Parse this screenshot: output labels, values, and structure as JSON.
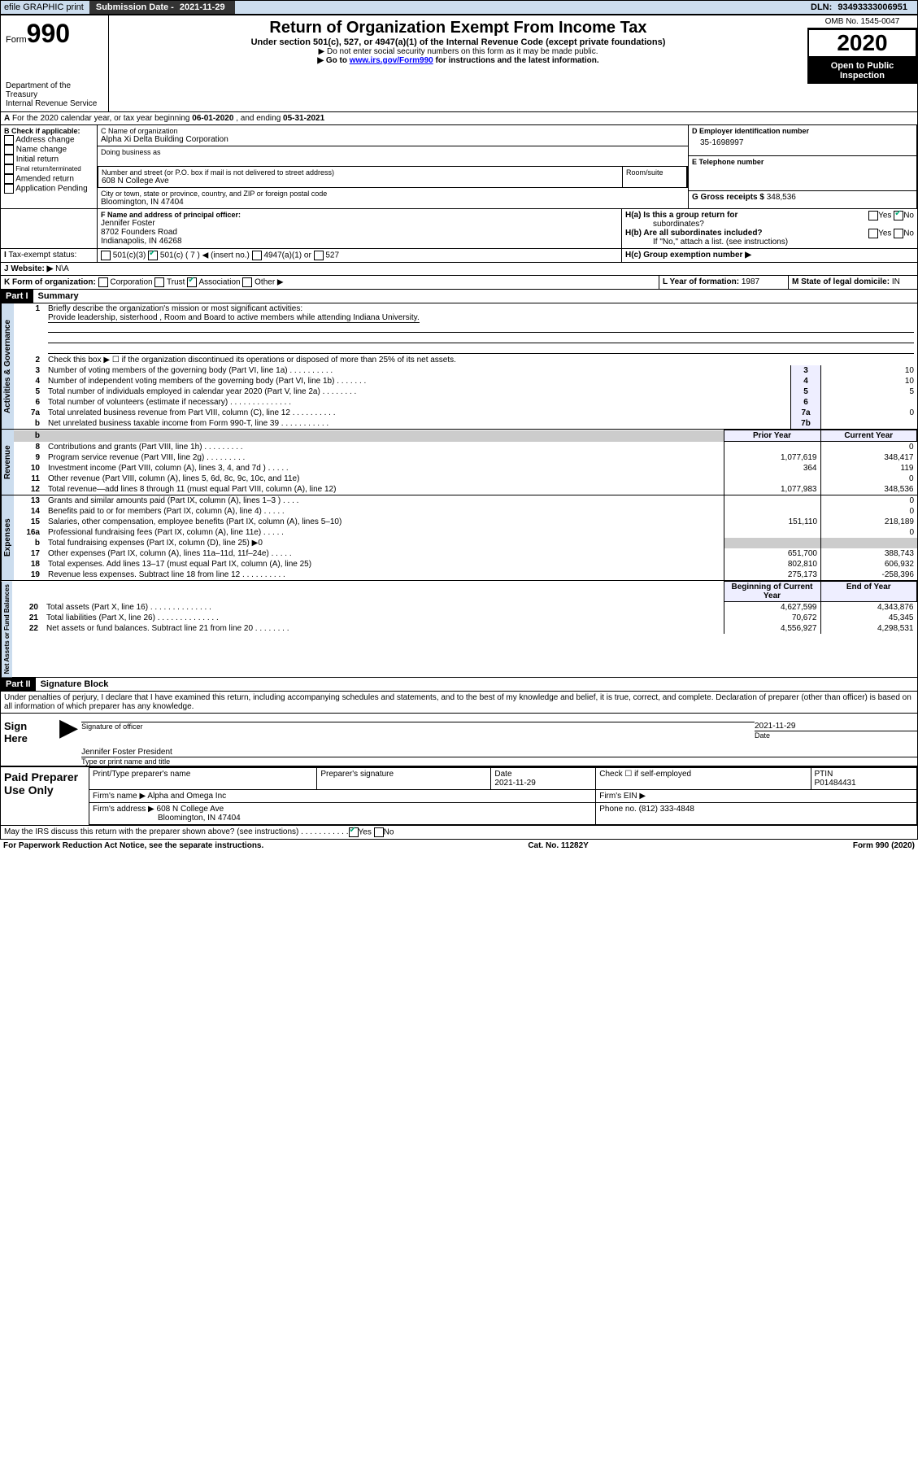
{
  "topbar": {
    "efile": "efile GRAPHIC print",
    "sub_label": "Submission Date - ",
    "sub_date": "2021-11-29",
    "dln_label": "DLN: ",
    "dln": "93493333006951"
  },
  "header": {
    "form_word": "Form",
    "form_num": "990",
    "title": "Return of Organization Exempt From Income Tax",
    "sub1": "Under section 501(c), 527, or 4947(a)(1) of the Internal Revenue Code (except private foundations)",
    "sub2": "▶ Do not enter social security numbers on this form as it may be made public.",
    "sub3a": "▶ Go to ",
    "sub3_link": "www.irs.gov/Form990",
    "sub3b": " for instructions and the latest information.",
    "omb": "OMB No. 1545-0047",
    "year": "2020",
    "inspect1": "Open to Public",
    "inspect2": "Inspection",
    "dept1": "Department of the Treasury",
    "dept2": "Internal Revenue Service"
  },
  "A": {
    "text": "For the 2020 calendar year, or tax year beginning ",
    "begin": "06-01-2020",
    ", and ending ": "",
    ", and ending": "   , and ending ",
    "end": "05-31-2021"
  },
  "B": {
    "label": "B Check if applicable:",
    "opts": [
      "Address change",
      "Name change",
      "Initial return",
      "Final return/terminated",
      "Amended return",
      "Application Pending"
    ]
  },
  "C": {
    "name_label": "C Name of organization",
    "name": "Alpha Xi Delta Building Corporation",
    "dba_label": "Doing business as",
    "addr_label": "Number and street (or P.O. box if mail is not delivered to street address)",
    "room_label": "Room/suite",
    "addr": "608 N College Ave",
    "city_label": "City or town, state or province, country, and ZIP or foreign postal code",
    "city": "Bloomington, IN  47404"
  },
  "D": {
    "label": "D Employer identification number",
    "val": "35-1698997"
  },
  "E": {
    "label": "E Telephone number"
  },
  "G": {
    "label": "G Gross receipts $ ",
    "val": "348,536"
  },
  "F": {
    "label": "F  Name and address of principal officer:",
    "name": "Jennifer Foster",
    "addr1": "8702 Founders Road",
    "addr2": "Indianapolis, IN  46268"
  },
  "H": {
    "a": "H(a)  Is this a group return for",
    "a2": "subordinates?",
    "b": "H(b)  Are all subordinates included?",
    "note": "If \"No,\" attach a list. (see instructions)",
    "c": "H(c)  Group exemption number ▶",
    "yes": "Yes",
    "no": "No"
  },
  "I": {
    "label": "Tax-exempt status:",
    "o1": "501(c)(3)",
    "o2": "501(c) ( 7 ) ◀ (insert no.)",
    "o3": "4947(a)(1) or",
    "o4": "527"
  },
  "J": {
    "label": "Website: ▶",
    "val": "N\\A"
  },
  "K": {
    "label": "K Form of organization:",
    "opts": [
      "Corporation",
      "Trust",
      "Association",
      "Other ▶"
    ]
  },
  "L": {
    "label": "L Year of formation: ",
    "val": "1987"
  },
  "M": {
    "label": "M State of legal domicile: ",
    "val": "IN"
  },
  "part1": {
    "hdr": "Part I",
    "title": "Summary"
  },
  "gov": {
    "l1": "Briefly describe the organization's mission or most significant activities:",
    "l1v": "Provide leadership, sisterhood , Room and Board to active members while attending Indiana University.",
    "l2": "Check this box ▶ ☐  if the organization discontinued its operations or disposed of more than 25% of its net assets.",
    "rows": [
      [
        "3",
        "Number of voting members of the governing body (Part VI, line 1a)   .    .    .    .    .    .    .    .    .    .",
        "3",
        "10"
      ],
      [
        "4",
        "Number of independent voting members of the governing body (Part VI, line 1b)   .    .    .    .    .    .    .",
        "4",
        "10"
      ],
      [
        "5",
        "Total number of individuals employed in calendar year 2020 (Part V, line 2a)   .    .    .    .    .    .    .    .",
        "5",
        "5"
      ],
      [
        "6",
        "Total number of volunteers (estimate if necessary)   .    .    .    .    .    .    .    .    .    .    .    .    .    .",
        "6",
        ""
      ],
      [
        "7a",
        "Total unrelated business revenue from Part VIII, column (C), line 12   .    .    .    .    .    .    .    .    .    .",
        "7a",
        "0"
      ],
      [
        "b",
        "Net unrelated business taxable income from Form 990-T, line 39   .    .    .    .    .    .    .    .    .    .    .",
        "7b",
        ""
      ]
    ]
  },
  "cols": {
    "prior": "Prior Year",
    "current": "Current Year",
    "boy": "Beginning of Current Year",
    "eoy": "End of Year"
  },
  "rev": [
    [
      "8",
      "Contributions and grants (Part VIII, line 1h)   .    .    .    .    .    .    .    .    .",
      "",
      "0"
    ],
    [
      "9",
      "Program service revenue (Part VIII, line 2g)   .    .    .    .    .    .    .    .    .",
      "1,077,619",
      "348,417"
    ],
    [
      "10",
      "Investment income (Part VIII, column (A), lines 3, 4, and 7d )   .    .    .    .    .",
      "364",
      "119"
    ],
    [
      "11",
      "Other revenue (Part VIII, column (A), lines 5, 6d, 8c, 9c, 10c, and 11e)",
      "",
      "0"
    ],
    [
      "12",
      "Total revenue—add lines 8 through 11 (must equal Part VIII, column (A), line 12)",
      "1,077,983",
      "348,536"
    ]
  ],
  "exp": [
    [
      "13",
      "Grants and similar amounts paid (Part IX, column (A), lines 1–3 )   .    .    .    .",
      "",
      "0"
    ],
    [
      "14",
      "Benefits paid to or for members (Part IX, column (A), line 4)   .    .    .    .    .",
      "",
      "0"
    ],
    [
      "15",
      "Salaries, other compensation, employee benefits (Part IX, column (A), lines 5–10)",
      "151,110",
      "218,189"
    ],
    [
      "16a",
      "Professional fundraising fees (Part IX, column (A), line 11e)   .    .    .    .    .",
      "",
      "0"
    ],
    [
      "b",
      "Total fundraising expenses (Part IX, column (D), line 25) ▶0",
      "shade",
      "shade"
    ],
    [
      "17",
      "Other expenses (Part IX, column (A), lines 11a–11d, 11f–24e)   .    .    .    .    .",
      "651,700",
      "388,743"
    ],
    [
      "18",
      "Total expenses. Add lines 13–17 (must equal Part IX, column (A), line 25)",
      "802,810",
      "606,932"
    ],
    [
      "19",
      "Revenue less expenses. Subtract line 18 from line 12   .    .    .    .    .    .    .    .    .    .",
      "275,173",
      "-258,396"
    ]
  ],
  "net": [
    [
      "20",
      "Total assets (Part X, line 16)   .    .    .    .    .    .    .    .    .    .    .    .    .    .",
      "4,627,599",
      "4,343,876"
    ],
    [
      "21",
      "Total liabilities (Part X, line 26)   .    .    .    .    .    .    .    .    .    .    .    .    .    .",
      "70,672",
      "45,345"
    ],
    [
      "22",
      "Net assets or fund balances. Subtract line 21 from line 20   .    .    .    .    .    .    .    .",
      "4,556,927",
      "4,298,531"
    ]
  ],
  "sides": {
    "gov": "Activities & Governance",
    "rev": "Revenue",
    "exp": "Expenses",
    "net": "Net Assets or Fund Balances"
  },
  "part2": {
    "hdr": "Part II",
    "title": "Signature Block",
    "decl": "Under penalties of perjury, I declare that I have examined this return, including accompanying schedules and statements, and to the best of my knowledge and belief, it is true, correct, and complete. Declaration of preparer (other than officer) is based on all information of which preparer has any knowledge."
  },
  "sign": {
    "here": "Sign Here",
    "sig": "Signature of officer",
    "date_label": "Date",
    "date": "2021-11-29",
    "name": "Jennifer Foster  President",
    "type": "Type or print name and title"
  },
  "prep": {
    "label": "Paid Preparer Use Only",
    "h": [
      "Print/Type preparer's name",
      "Preparer's signature",
      "Date",
      "Check ☐  if self-employed",
      "PTIN"
    ],
    "date": "2021-11-29",
    "ptin": "P01484431",
    "firm_label": "Firm's name    ▶",
    "firm": "Alpha and Omega Inc",
    "ein_label": "Firm's EIN ▶",
    "addr_label": "Firm's address ▶",
    "addr1": "608 N College Ave",
    "addr2": "Bloomington, IN  47404",
    "phone_label": "Phone no. ",
    "phone": "(812) 333-4848"
  },
  "discuss": "May the IRS discuss this return with the preparer shown above? (see instructions)   .    .    .    .    .    .    .    .    .    .    .",
  "footer": {
    "l": "For Paperwork Reduction Act Notice, see the separate instructions.",
    "c": "Cat. No. 11282Y",
    "r": "Form 990 (2020)"
  }
}
